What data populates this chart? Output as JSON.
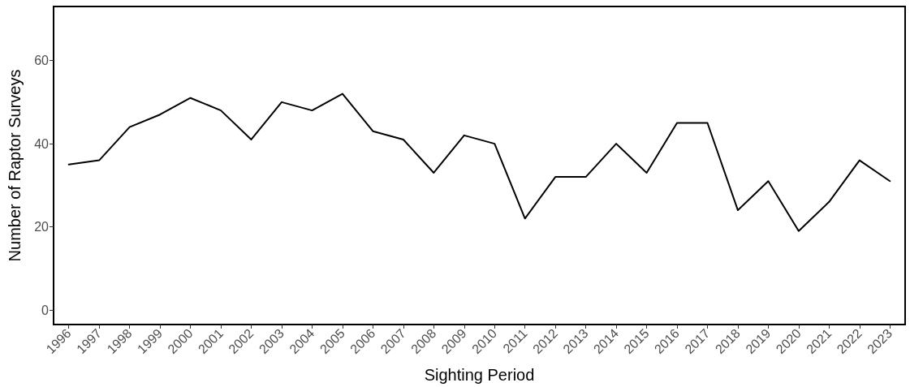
{
  "chart_data": {
    "type": "line",
    "xlabel": "Sighting Period",
    "ylabel": "Number of Raptor Surveys",
    "categories": [
      "1996",
      "1997",
      "1998",
      "1999",
      "2000",
      "2001",
      "2002",
      "2003",
      "2004",
      "2005",
      "2006",
      "2007",
      "2008",
      "2009",
      "2010",
      "2011",
      "2012",
      "2013",
      "2014",
      "2015",
      "2016",
      "2017",
      "2018",
      "2019",
      "2020",
      "2021",
      "2022",
      "2023"
    ],
    "series": [
      {
        "color": "#000000",
        "values": [
          35,
          36,
          44,
          47,
          51,
          48,
          41,
          50,
          48,
          52,
          43,
          41,
          33,
          42,
          40,
          22,
          32,
          32,
          40,
          33,
          45,
          45,
          24,
          31,
          19,
          26,
          36,
          31
        ]
      }
    ],
    "ylim": [
      -3.5,
      73
    ],
    "yticks": [
      0,
      20,
      40,
      60
    ],
    "grid": false,
    "legend": false,
    "marker": "none",
    "line_style": "solid"
  }
}
